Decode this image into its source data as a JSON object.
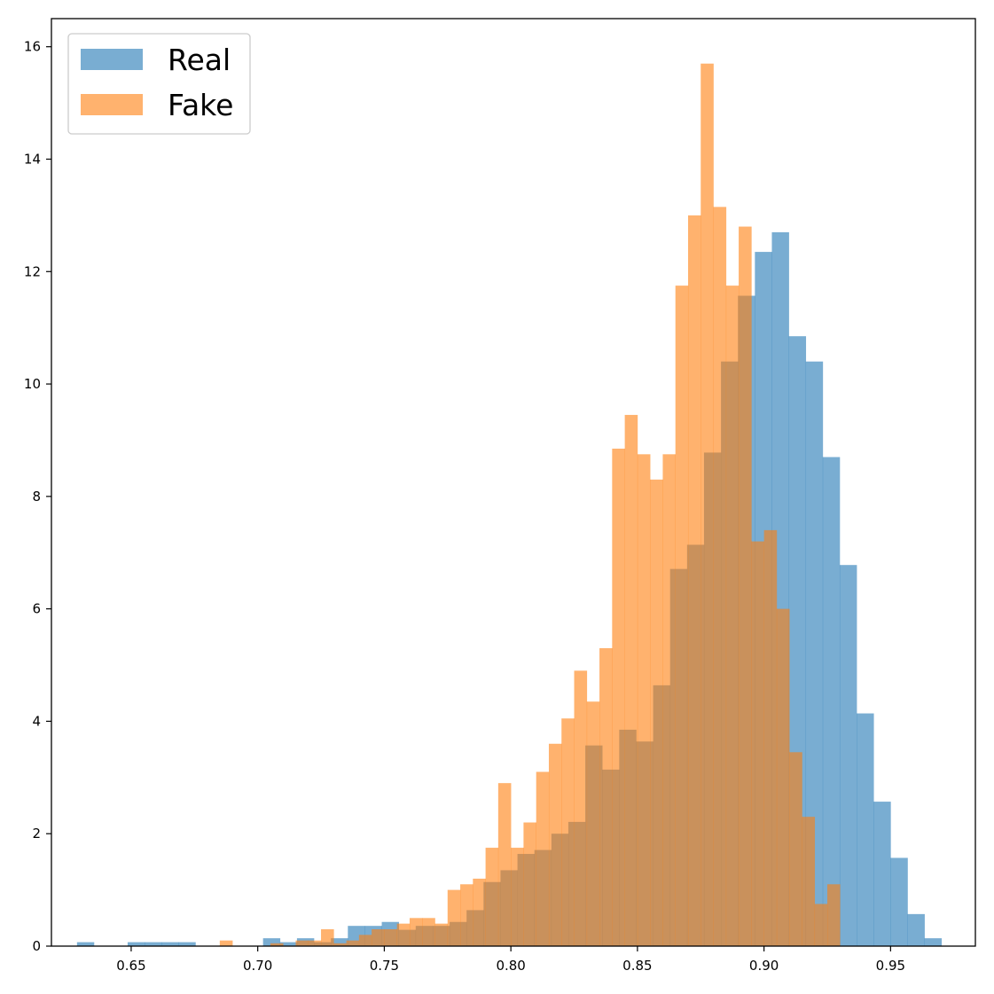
{
  "chart_data": {
    "type": "bar",
    "title": "",
    "xlabel": "",
    "ylabel": "",
    "xlim": [
      0.6185,
      0.9835
    ],
    "ylim": [
      0,
      16.5
    ],
    "xticks": [
      "0.65",
      "0.70",
      "0.75",
      "0.80",
      "0.85",
      "0.90",
      "0.95"
    ],
    "yticks": [
      "0",
      "2",
      "4",
      "6",
      "8",
      "10",
      "12",
      "14",
      "16"
    ],
    "grid": false,
    "legend_position": "top-left",
    "series": [
      {
        "name": "Real",
        "color": "#1f77b4",
        "opacity": 0.6,
        "bins": [
          [
            0.6286,
            0.6353,
            0.07
          ],
          [
            0.6486,
            0.6553,
            0.07
          ],
          [
            0.6553,
            0.662,
            0.07
          ],
          [
            0.662,
            0.6687,
            0.07
          ],
          [
            0.6687,
            0.6754,
            0.07
          ],
          [
            0.7021,
            0.7088,
            0.14
          ],
          [
            0.7088,
            0.7155,
            0.07
          ],
          [
            0.7155,
            0.7222,
            0.14
          ],
          [
            0.7222,
            0.7289,
            0.07
          ],
          [
            0.7289,
            0.7356,
            0.14
          ],
          [
            0.7356,
            0.7423,
            0.36
          ],
          [
            0.7423,
            0.749,
            0.36
          ],
          [
            0.749,
            0.7557,
            0.43
          ],
          [
            0.7557,
            0.7624,
            0.29
          ],
          [
            0.7624,
            0.7691,
            0.36
          ],
          [
            0.7691,
            0.7758,
            0.36
          ],
          [
            0.7758,
            0.7825,
            0.43
          ],
          [
            0.7825,
            0.7892,
            0.64
          ],
          [
            0.7892,
            0.7959,
            1.14
          ],
          [
            0.7959,
            0.8026,
            1.35
          ],
          [
            0.8026,
            0.8093,
            1.64
          ],
          [
            0.8093,
            0.816,
            1.71
          ],
          [
            0.816,
            0.8227,
            2.0
          ],
          [
            0.8227,
            0.8294,
            2.21
          ],
          [
            0.8294,
            0.8361,
            3.57
          ],
          [
            0.8361,
            0.8428,
            3.14
          ],
          [
            0.8428,
            0.8495,
            3.85
          ],
          [
            0.8495,
            0.8562,
            3.64
          ],
          [
            0.8562,
            0.8629,
            4.64
          ],
          [
            0.8629,
            0.8696,
            6.71
          ],
          [
            0.8696,
            0.8763,
            7.14
          ],
          [
            0.8763,
            0.883,
            8.78
          ],
          [
            0.883,
            0.8897,
            10.4
          ],
          [
            0.8897,
            0.8964,
            11.57
          ],
          [
            0.8964,
            0.9031,
            12.35
          ],
          [
            0.9031,
            0.9098,
            12.7
          ],
          [
            0.9098,
            0.9165,
            10.85
          ],
          [
            0.9165,
            0.9232,
            10.4
          ],
          [
            0.9232,
            0.9299,
            8.7
          ],
          [
            0.9299,
            0.9366,
            6.78
          ],
          [
            0.9366,
            0.9433,
            4.14
          ],
          [
            0.9433,
            0.95,
            2.57
          ],
          [
            0.95,
            0.9567,
            1.57
          ],
          [
            0.9567,
            0.9634,
            0.57
          ],
          [
            0.9634,
            0.9701,
            0.14
          ]
        ]
      },
      {
        "name": "Fake",
        "color": "#ff7f0e",
        "opacity": 0.6,
        "bins": [
          [
            0.685,
            0.69,
            0.1
          ],
          [
            0.705,
            0.71,
            0.05
          ],
          [
            0.715,
            0.72,
            0.1
          ],
          [
            0.72,
            0.725,
            0.1
          ],
          [
            0.725,
            0.73,
            0.3
          ],
          [
            0.73,
            0.735,
            0.05
          ],
          [
            0.735,
            0.74,
            0.1
          ],
          [
            0.74,
            0.745,
            0.2
          ],
          [
            0.745,
            0.75,
            0.3
          ],
          [
            0.75,
            0.755,
            0.3
          ],
          [
            0.755,
            0.76,
            0.4
          ],
          [
            0.76,
            0.765,
            0.5
          ],
          [
            0.765,
            0.77,
            0.5
          ],
          [
            0.77,
            0.775,
            0.4
          ],
          [
            0.775,
            0.78,
            1.0
          ],
          [
            0.78,
            0.785,
            1.1
          ],
          [
            0.785,
            0.79,
            1.2
          ],
          [
            0.79,
            0.795,
            1.75
          ],
          [
            0.795,
            0.8,
            2.9
          ],
          [
            0.8,
            0.805,
            1.75
          ],
          [
            0.805,
            0.81,
            2.2
          ],
          [
            0.81,
            0.815,
            3.1
          ],
          [
            0.815,
            0.82,
            3.6
          ],
          [
            0.82,
            0.825,
            4.05
          ],
          [
            0.825,
            0.83,
            4.9
          ],
          [
            0.83,
            0.835,
            4.35
          ],
          [
            0.835,
            0.84,
            5.3
          ],
          [
            0.84,
            0.845,
            8.85
          ],
          [
            0.845,
            0.85,
            9.45
          ],
          [
            0.85,
            0.855,
            8.75
          ],
          [
            0.855,
            0.86,
            8.3
          ],
          [
            0.86,
            0.865,
            8.75
          ],
          [
            0.865,
            0.87,
            11.75
          ],
          [
            0.87,
            0.875,
            13.0
          ],
          [
            0.875,
            0.88,
            15.7
          ],
          [
            0.88,
            0.885,
            13.15
          ],
          [
            0.885,
            0.89,
            11.75
          ],
          [
            0.89,
            0.895,
            12.8
          ],
          [
            0.895,
            0.9,
            7.2
          ],
          [
            0.9,
            0.905,
            7.4
          ],
          [
            0.905,
            0.91,
            6.0
          ],
          [
            0.91,
            0.915,
            3.45
          ],
          [
            0.915,
            0.92,
            2.3
          ],
          [
            0.92,
            0.925,
            0.75
          ],
          [
            0.925,
            0.93,
            1.1
          ]
        ]
      }
    ]
  }
}
